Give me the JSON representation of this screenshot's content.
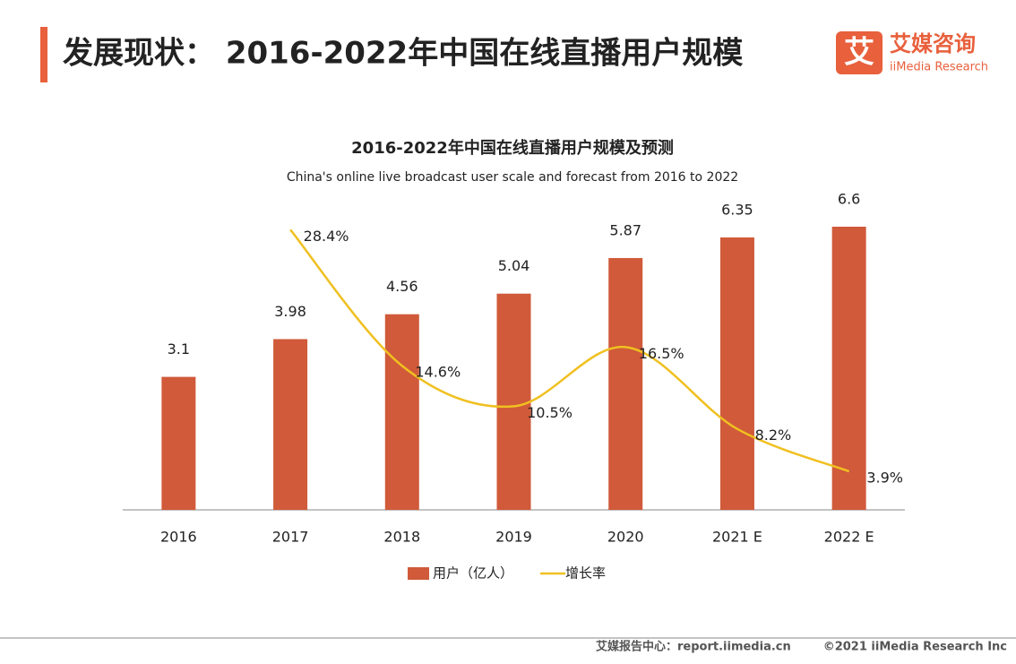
{
  "header": {
    "title": "发展现状： 2016-2022年中国在线直播用户规模",
    "logo_mark": "艾",
    "logo_name": "艾媒咨询",
    "logo_sub": "iiMedia Research"
  },
  "chart_data": {
    "type": "bar",
    "title": "2016-2022年中国在线直播用户规模及预测",
    "subtitle": "China's online live broadcast user scale and forecast from 2016 to 2022",
    "categories": [
      "2016",
      "2017",
      "2018",
      "2019",
      "2020",
      "2021 E",
      "2022 E"
    ],
    "series": [
      {
        "name": "用户（亿人）",
        "color": "#d05a3a",
        "values": [
          3.1,
          3.98,
          4.56,
          5.04,
          5.87,
          6.35,
          6.6
        ]
      },
      {
        "name": "增长率",
        "color": "#f0c020",
        "type": "line",
        "axis": "y2",
        "values": [
          null,
          28.4,
          14.6,
          10.5,
          16.5,
          8.2,
          3.9
        ],
        "value_labels": [
          null,
          "28.4%",
          "14.6%",
          "10.5%",
          "16.5%",
          "8.2%",
          "3.9%"
        ]
      }
    ],
    "ylim": [
      0,
      6.6
    ],
    "y2lim": [
      0,
      28.7
    ],
    "legend": "bottom"
  },
  "footer": {
    "source": "艾媒报告中心：report.iimedia.cn",
    "copyright": "©2021  iiMedia Research  Inc"
  }
}
